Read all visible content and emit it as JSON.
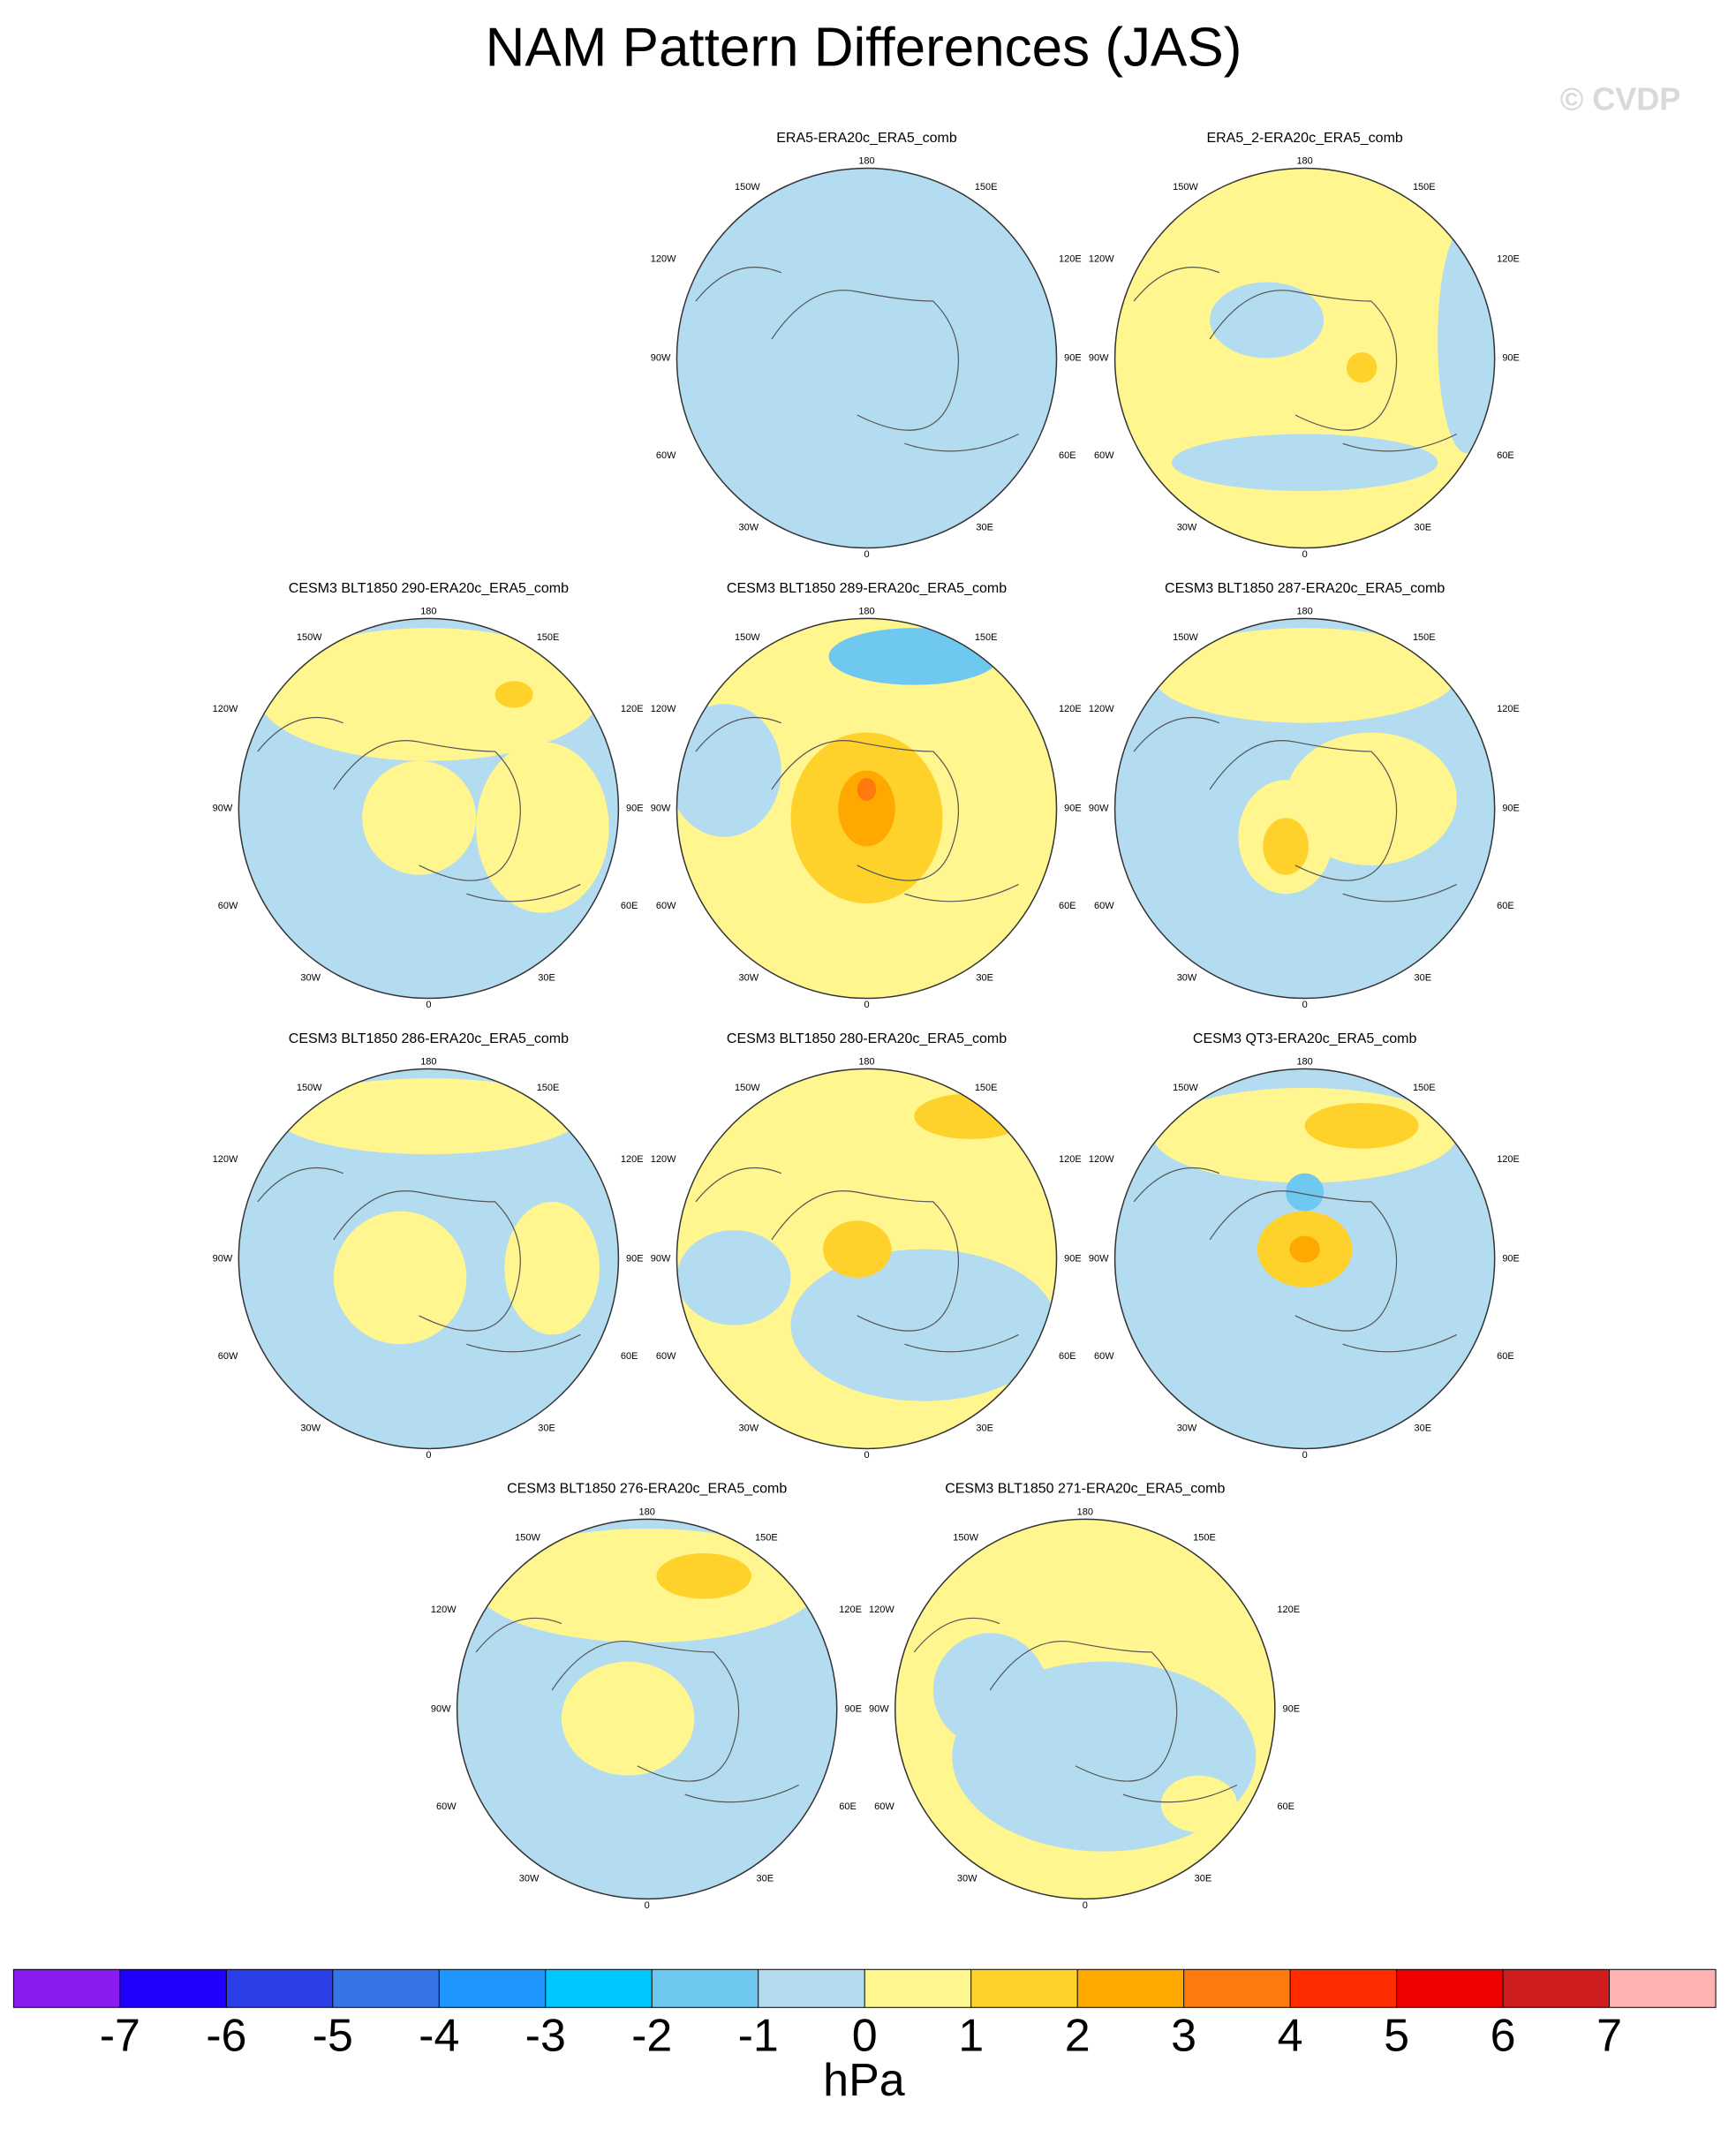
{
  "title": "NAM Pattern Differences (JAS)",
  "watermark": "© CVDP",
  "panels": [
    {
      "title": "ERA5-ERA20c_ERA5_comb"
    },
    {
      "title": "ERA5_2-ERA20c_ERA5_comb"
    },
    {
      "title": "CESM3 BLT1850 290-ERA20c_ERA5_comb"
    },
    {
      "title": "CESM3 BLT1850 289-ERA20c_ERA5_comb"
    },
    {
      "title": "CESM3 BLT1850 287-ERA20c_ERA5_comb"
    },
    {
      "title": "CESM3 BLT1850 286-ERA20c_ERA5_comb"
    },
    {
      "title": "CESM3 BLT1850 280-ERA20c_ERA5_comb"
    },
    {
      "title": "CESM3 QT3-ERA20c_ERA5_comb"
    },
    {
      "title": "CESM3 BLT1850 276-ERA20c_ERA5_comb"
    },
    {
      "title": "CESM3 BLT1850 271-ERA20c_ERA5_comb"
    }
  ],
  "lon_labels": [
    "180",
    "150E",
    "120E",
    "90E",
    "60E",
    "30E",
    "0",
    "30W",
    "60W",
    "90W",
    "120W",
    "150W"
  ],
  "colorbar": {
    "levels": [
      -7,
      -6,
      -5,
      -4,
      -3,
      -2,
      -1,
      0,
      1,
      2,
      3,
      4,
      5,
      6,
      7
    ],
    "colors": [
      "#8a1cf0",
      "#1e00fc",
      "#2a3fe8",
      "#3575e8",
      "#1e96fe",
      "#00c8fe",
      "#6fc8f0",
      "#b3dcf1",
      "#fff68f",
      "#fed22b",
      "#fea800",
      "#ff7a0d",
      "#ff2d00",
      "#f00000",
      "#d01d1d",
      "#ffb2b2"
    ],
    "unit": "hPa"
  }
}
